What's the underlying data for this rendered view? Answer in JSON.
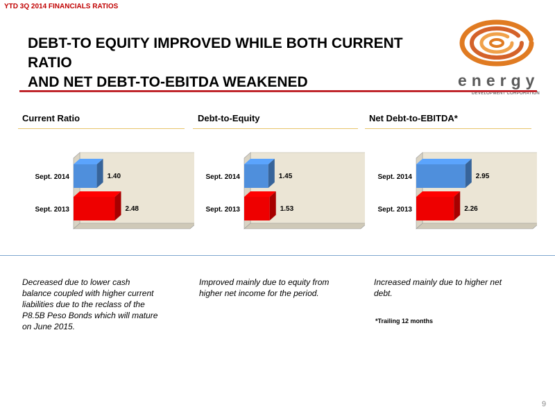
{
  "header_label": "YTD 3Q 2014 FINANCIALS RATIOS",
  "title_line1": "DEBT-TO EQUITY IMPROVED WHILE BOTH CURRENT RATIO",
  "title_line2": "AND NET DEBT-TO-EBITDA WEAKENED",
  "logo": {
    "word": "energy",
    "subtitle": "DEVELOPMENT CORPORATION"
  },
  "colors": {
    "accent_red": "#c0272d",
    "bar_2014": "#4f8fdc",
    "bar_2013": "#ee0000",
    "chart_wall": "#ebe5d5",
    "panel_rule": "#e8c36a",
    "separator": "#7ea6cf"
  },
  "panels": [
    {
      "heading": "Current Ratio",
      "note": [
        "Decreased due  to lower cash",
        "balance coupled with higher current",
        "liabilities due to the reclass of the",
        "P8.5B Peso Bonds which will mature",
        "on June 2015."
      ]
    },
    {
      "heading": "Debt-to-Equity",
      "note": [
        "Improved mainly due to equity from",
        "higher net income for the period."
      ]
    },
    {
      "heading": "Net Debt-to-EBITDA*",
      "note": [
        "Increased mainly due to higher net",
        "debt."
      ]
    }
  ],
  "chart_data": [
    {
      "type": "bar",
      "orientation": "horizontal",
      "categories": [
        "Sept. 2014",
        "Sept. 2013"
      ],
      "values": [
        1.4,
        2.48
      ],
      "value_labels": [
        "1.40",
        "2.48"
      ],
      "xlim": [
        0,
        7
      ]
    },
    {
      "type": "bar",
      "orientation": "horizontal",
      "categories": [
        "Sept. 2014",
        "Sept. 2013"
      ],
      "values": [
        1.45,
        1.53
      ],
      "value_labels": [
        "1.45",
        "1.53"
      ],
      "xlim": [
        0,
        7
      ]
    },
    {
      "type": "bar",
      "orientation": "horizontal",
      "categories": [
        "Sept.  2014",
        "Sept. 2013"
      ],
      "values": [
        2.95,
        2.26
      ],
      "value_labels": [
        "2.95",
        "2.26"
      ],
      "xlim": [
        0,
        7
      ]
    }
  ],
  "footnote": "*Trailing 12 months",
  "page_number": "9"
}
